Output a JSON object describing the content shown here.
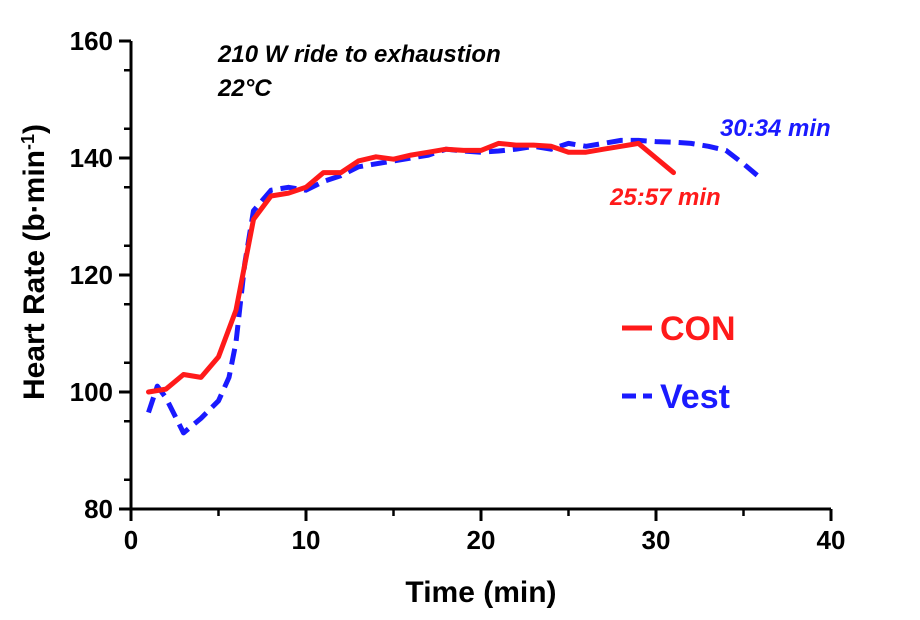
{
  "chart_data": {
    "type": "line",
    "title": "",
    "xlabel": "Time (min)",
    "ylabel": {
      "main": "Heart Rate (b·min",
      "sup": "-1",
      "end": ")"
    },
    "xlim": [
      0,
      40
    ],
    "ylim": [
      80,
      160
    ],
    "x_ticks": [
      0,
      10,
      20,
      30,
      40
    ],
    "y_ticks": [
      80,
      100,
      120,
      140,
      160
    ],
    "x_tick_labels": [
      "0",
      "10",
      "20",
      "30",
      "40"
    ],
    "y_tick_labels": [
      "80",
      "100",
      "120",
      "140",
      "160"
    ],
    "grid": false,
    "legend_position": "center-right",
    "annotations": {
      "condition_line1": "210 W ride to exhaustion",
      "condition_line2": "22°C",
      "con_end_time": "25:57 min",
      "vest_end_time": "30:34 min"
    },
    "series": [
      {
        "name": "CON",
        "color": "#ff1a1a",
        "style": "solid",
        "x": [
          1,
          2,
          3,
          4,
          5,
          6,
          7,
          8,
          9,
          10,
          11,
          12,
          13,
          14,
          15,
          16,
          17,
          18,
          19,
          20,
          21,
          22,
          23,
          24,
          25,
          26,
          27,
          28,
          29,
          30,
          31
        ],
        "values": [
          100,
          100.5,
          103,
          102.5,
          106,
          114,
          129.5,
          133.5,
          134,
          135,
          137.5,
          137.5,
          139.5,
          140.2,
          139.8,
          140.5,
          141,
          141.5,
          141.3,
          141.3,
          142.5,
          142.2,
          142.2,
          142,
          141,
          141,
          141.5,
          142,
          142.5,
          140,
          137.5
        ]
      },
      {
        "name": "Vest",
        "color": "#1a1aff",
        "style": "dashed",
        "x": [
          1,
          1.5,
          2,
          3,
          4,
          5,
          5.6,
          6,
          6.5,
          7,
          8,
          9,
          10,
          11,
          12,
          13,
          14,
          15,
          16,
          17,
          18,
          19,
          20,
          21,
          22,
          23,
          24,
          25,
          26,
          27,
          28,
          29,
          30,
          31,
          32,
          33,
          34,
          35,
          36
        ],
        "values": [
          96.5,
          101,
          99,
          93,
          95.5,
          98.5,
          102.5,
          108.5,
          122,
          131,
          134.5,
          135,
          134.5,
          136,
          137,
          138.5,
          139,
          139.5,
          140,
          140.5,
          141.5,
          141.2,
          141,
          141.2,
          141.5,
          142,
          141.5,
          142.5,
          142,
          142.5,
          143,
          143,
          142.8,
          142.7,
          142.5,
          142,
          141.3,
          139,
          136.5
        ]
      }
    ]
  }
}
